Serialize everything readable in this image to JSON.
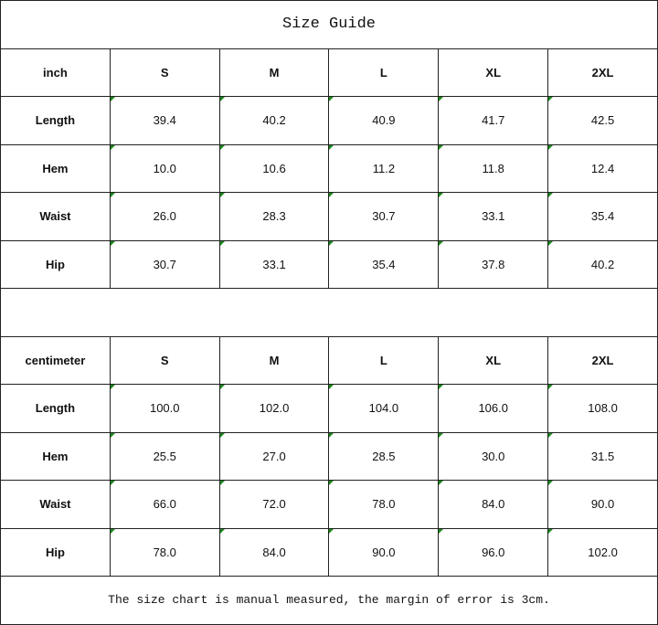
{
  "title": "Size Guide",
  "tables": [
    {
      "unit": "inch",
      "sizes": [
        "S",
        "M",
        "L",
        "XL",
        "2XL"
      ],
      "rows": [
        {
          "label": "Length",
          "values": [
            "39.4",
            "40.2",
            "40.9",
            "41.7",
            "42.5"
          ]
        },
        {
          "label": "Hem",
          "values": [
            "10.0",
            "10.6",
            "11.2",
            "11.8",
            "12.4"
          ]
        },
        {
          "label": "Waist",
          "values": [
            "26.0",
            "28.3",
            "30.7",
            "33.1",
            "35.4"
          ]
        },
        {
          "label": "Hip",
          "values": [
            "30.7",
            "33.1",
            "35.4",
            "37.8",
            "40.2"
          ]
        }
      ]
    },
    {
      "unit": "centimeter",
      "sizes": [
        "S",
        "M",
        "L",
        "XL",
        "2XL"
      ],
      "rows": [
        {
          "label": "Length",
          "values": [
            "100.0",
            "102.0",
            "104.0",
            "106.0",
            "108.0"
          ]
        },
        {
          "label": "Hem",
          "values": [
            "25.5",
            "27.0",
            "28.5",
            "30.0",
            "31.5"
          ]
        },
        {
          "label": "Waist",
          "values": [
            "66.0",
            "72.0",
            "78.0",
            "84.0",
            "90.0"
          ]
        },
        {
          "label": "Hip",
          "values": [
            "78.0",
            "84.0",
            "90.0",
            "96.0",
            "102.0"
          ]
        }
      ]
    }
  ],
  "note": "The size chart is manual measured, the margin of error is 3cm.",
  "colors": {
    "error_indicator": "#1a8a1a",
    "border": "#222222"
  }
}
